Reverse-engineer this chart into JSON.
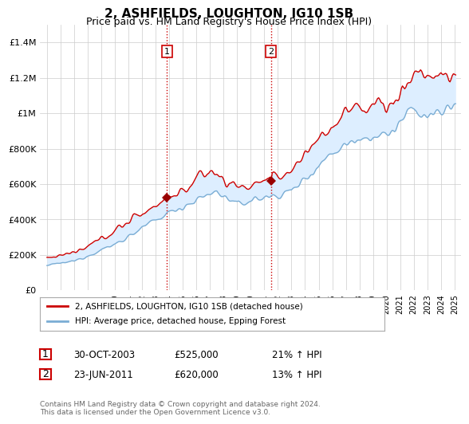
{
  "title": "2, ASHFIELDS, LOUGHTON, IG10 1SB",
  "subtitle": "Price paid vs. HM Land Registry's House Price Index (HPI)",
  "legend_line1": "2, ASHFIELDS, LOUGHTON, IG10 1SB (detached house)",
  "legend_line2": "HPI: Average price, detached house, Epping Forest",
  "sale1_date": "30-OCT-2003",
  "sale1_price": "£525,000",
  "sale1_hpi": "21% ↑ HPI",
  "sale2_date": "23-JUN-2011",
  "sale2_price": "£620,000",
  "sale2_hpi": "13% ↑ HPI",
  "footnote": "Contains HM Land Registry data © Crown copyright and database right 2024.\nThis data is licensed under the Open Government Licence v3.0.",
  "line_color_red": "#cc0000",
  "line_color_blue": "#7aadd4",
  "fill_color_blue": "#ddeeff",
  "sale_marker_color": "#990000",
  "vline_color": "#cc0000",
  "grid_color": "#cccccc",
  "background_color": "#ffffff",
  "sale1_x": 2003.83,
  "sale2_x": 2011.48,
  "sale1_y": 525000,
  "sale2_y": 620000,
  "ylim_min": 0,
  "ylim_max": 1500000,
  "xlim_min": 1994.5,
  "xlim_max": 2025.5,
  "yticks": [
    0,
    200000,
    400000,
    600000,
    800000,
    1000000,
    1200000,
    1400000
  ],
  "ytick_labels": [
    "£0",
    "£200K",
    "£400K",
    "£600K",
    "£800K",
    "£1M",
    "£1.2M",
    "£1.4M"
  ],
  "xtick_years": [
    1995,
    1996,
    1997,
    1998,
    1999,
    2000,
    2001,
    2002,
    2003,
    2004,
    2005,
    2006,
    2007,
    2008,
    2009,
    2010,
    2011,
    2012,
    2013,
    2014,
    2015,
    2016,
    2017,
    2018,
    2019,
    2020,
    2021,
    2022,
    2023,
    2024,
    2025
  ]
}
